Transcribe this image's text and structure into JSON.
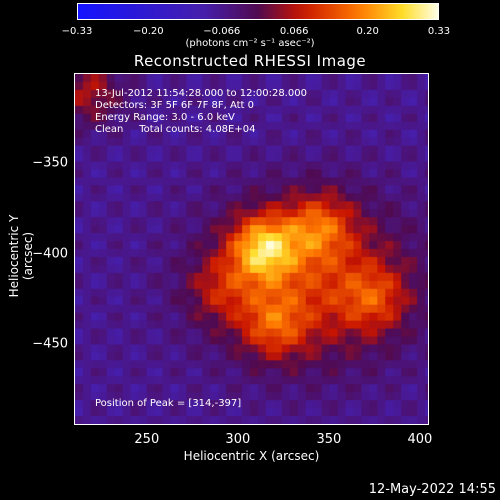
{
  "chart_data": {
    "type": "heatmap",
    "title": "Reconstructed RHESSI Image",
    "xlabel": "Heliocentric X (arcsec)",
    "ylabel": "Heliocentric Y (arcsec)",
    "xlim": [
      210,
      405
    ],
    "ylim": [
      -495,
      -300
    ],
    "x_ticks": [
      250,
      300,
      350,
      400
    ],
    "y_ticks": [
      -350,
      -400,
      -450
    ],
    "colorbar": {
      "range": [
        -0.33,
        0.33
      ],
      "tick_labels": [
        "-0.33",
        "-0.20",
        "-0.066",
        "0.066",
        "0.20",
        "0.33"
      ],
      "units": "(photons cm⁻² s⁻¹ asec⁻²)"
    },
    "peak": {
      "x": 314,
      "y": -397
    },
    "annotations": {
      "time": "13-Jul-2012 11:54:28.000 to 12:00:28.000",
      "detectors": "Detectors: 3F 5F 6F 7F 8F, Att 0",
      "energy": "Energy Range: 3.0 - 6.0 keV",
      "clean": "Clean     Total counts: 4.08E+04",
      "peak_text": "Position of Peak = [314,-397]"
    },
    "sources": [
      {
        "x": 314,
        "y": -397,
        "amp": 0.33
      },
      {
        "x": 345,
        "y": -385,
        "amp": 0.2
      },
      {
        "x": 320,
        "y": -440,
        "amp": 0.18
      },
      {
        "x": 375,
        "y": -425,
        "amp": 0.16
      },
      {
        "x": 290,
        "y": -420,
        "amp": 0.12
      },
      {
        "x": 218,
        "y": -310,
        "amp": 0.17
      }
    ]
  },
  "footer": {
    "date": "12-May-2022 14:55"
  }
}
